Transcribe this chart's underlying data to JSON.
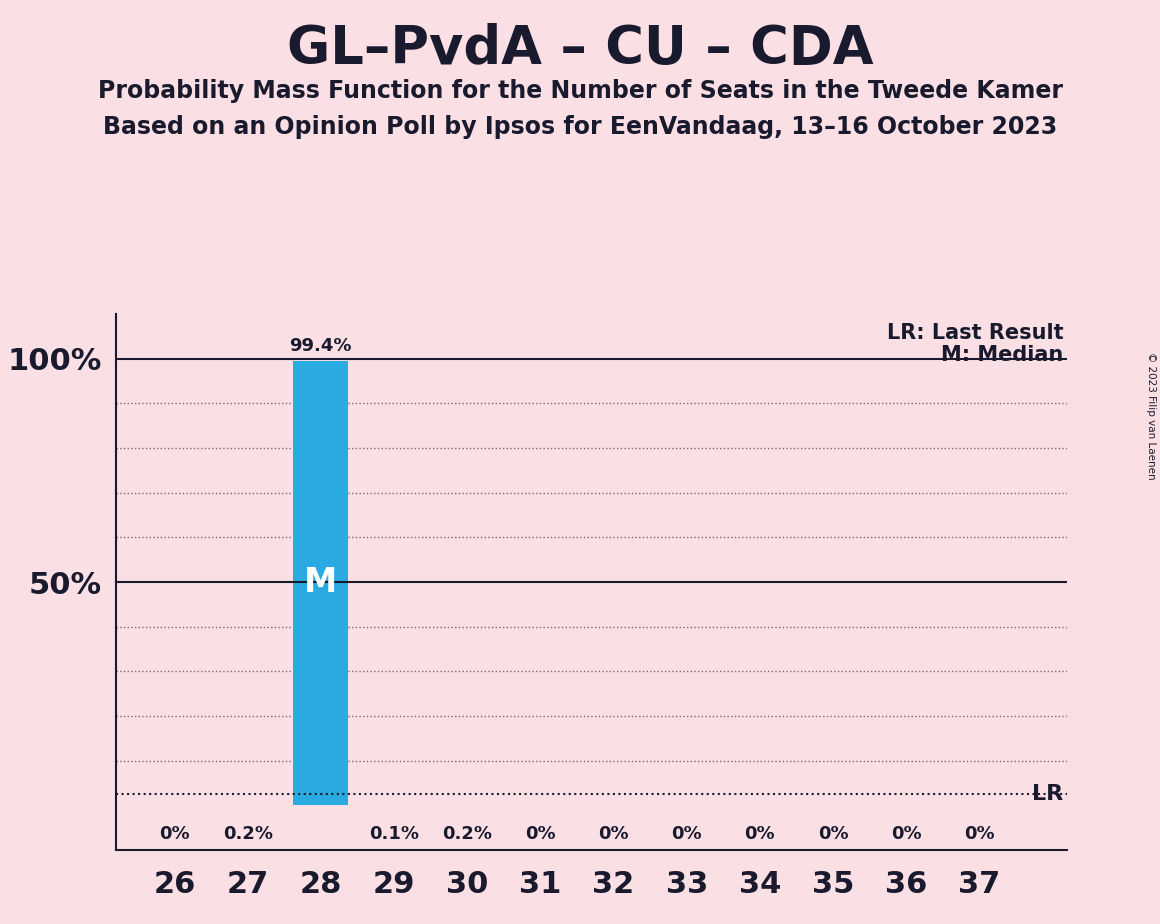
{
  "title": "GL–PvdA – CU – CDA",
  "subtitle1": "Probability Mass Function for the Number of Seats in the Tweede Kamer",
  "subtitle2": "Based on an Opinion Poll by Ipsos for EenVandaag, 13–16 October 2023",
  "copyright": "© 2023 Filip van Laenen",
  "seats": [
    26,
    27,
    28,
    29,
    30,
    31,
    32,
    33,
    34,
    35,
    36,
    37
  ],
  "probabilities": [
    0.0,
    0.2,
    99.4,
    0.1,
    0.2,
    0.0,
    0.0,
    0.0,
    0.0,
    0.0,
    0.0,
    0.0
  ],
  "bar_labels": [
    "0%",
    "0.2%",
    "",
    "0.1%",
    "0.2%",
    "0%",
    "0%",
    "0%",
    "0%",
    "0%",
    "0%",
    "0%"
  ],
  "tall_bar_label": "99.4%",
  "median_seat": 28,
  "last_result_seat": 28,
  "bar_color": "#29ABE2",
  "background_color": "#FAE0E4",
  "text_color": "#1a1a2e",
  "lr_y": 2.5,
  "legend_lr": "LR: Last Result",
  "legend_m": "M: Median",
  "ylim_min": -10,
  "ylim_max": 110,
  "xlim_min": 25.2,
  "xlim_max": 38.2
}
